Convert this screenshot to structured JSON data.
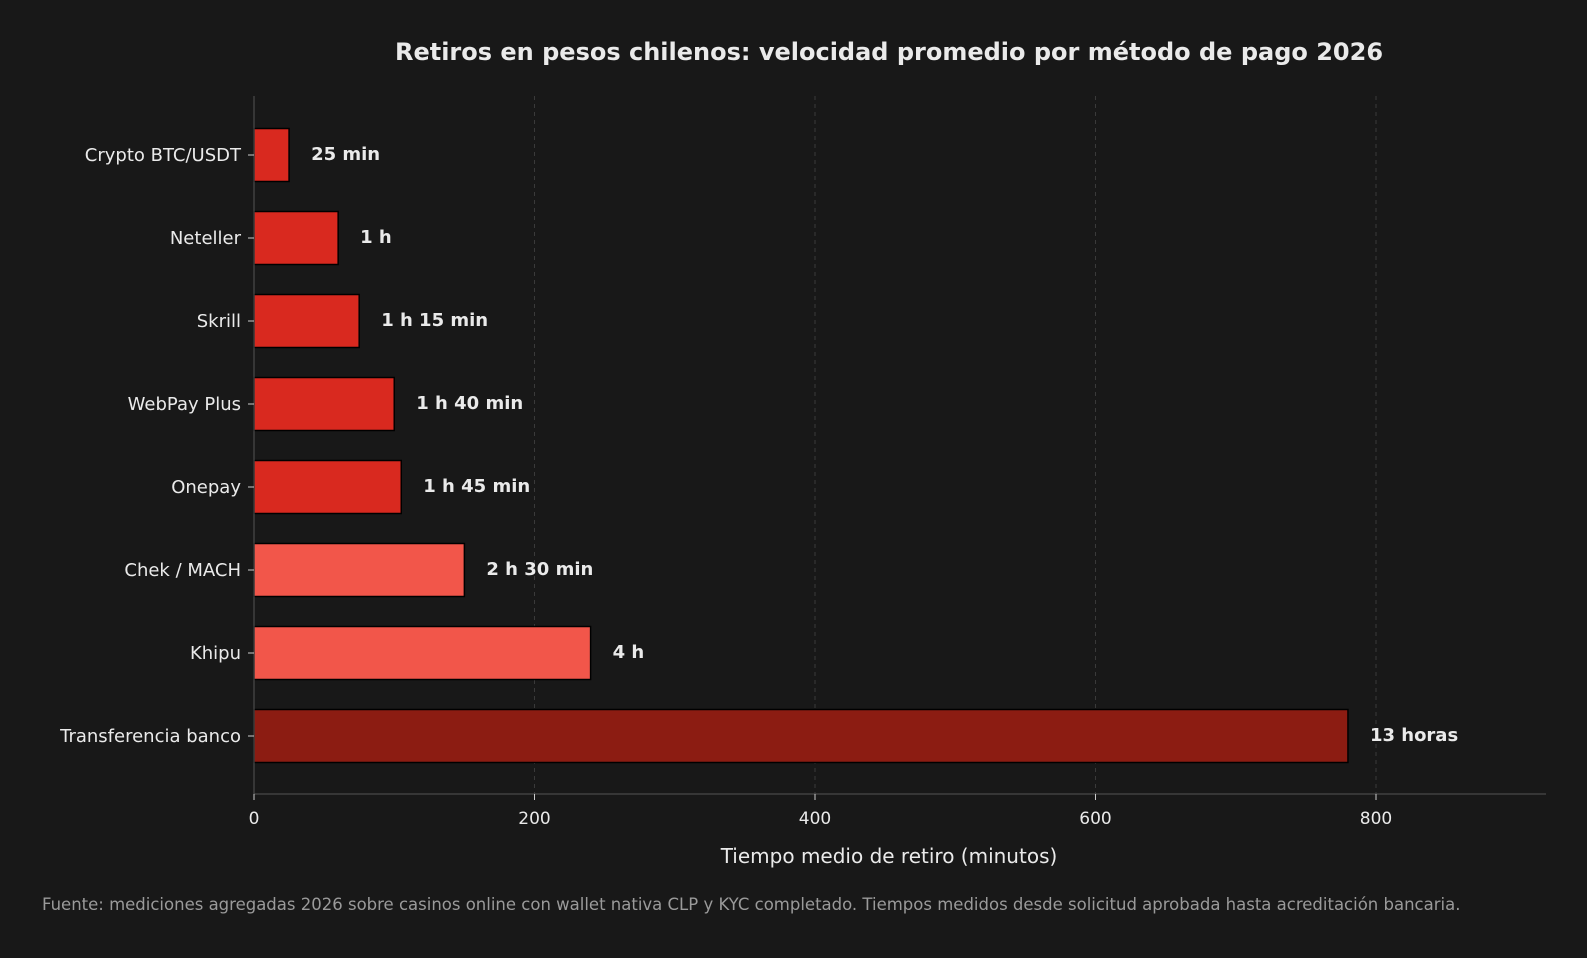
{
  "chart_data": {
    "type": "bar",
    "orientation": "horizontal",
    "title": "Retiros en pesos chilenos: velocidad promedio por método de pago 2026",
    "xlabel": "Tiempo medio de retiro (minutos)",
    "ylabel": "",
    "xlim": [
      0,
      920
    ],
    "xticks": [
      0,
      200,
      400,
      600,
      800
    ],
    "grid": "vertical-dashed",
    "categories": [
      "Crypto BTC/USDT",
      "Neteller",
      "Skrill",
      "WebPay Plus",
      "Onepay",
      "Chek / MACH",
      "Khipu",
      "Transferencia banco"
    ],
    "values": [
      25,
      60,
      75,
      100,
      105,
      150,
      240,
      780
    ],
    "value_labels": [
      "25 min",
      "1 h",
      "1 h 15 min",
      "1 h 40 min",
      "1 h 45 min",
      "2 h 30 min",
      "4 h",
      "13 horas"
    ],
    "colors": [
      "#d9291f",
      "#d9291f",
      "#d9291f",
      "#d9291f",
      "#d9291f",
      "#f2564a",
      "#f2564a",
      "#8c1c12"
    ]
  },
  "footer": {
    "source_note": "Fuente: mediciones agregadas 2026 sobre casinos online con wallet nativa CLP y KYC completado. Tiempos medidos desde solicitud aprobada hasta acreditación bancaria."
  },
  "theme": {
    "background": "#181818",
    "text": "#eaeaea",
    "axis": "#555555",
    "grid": "#3a3a3a",
    "bar_stroke": "#000000"
  }
}
